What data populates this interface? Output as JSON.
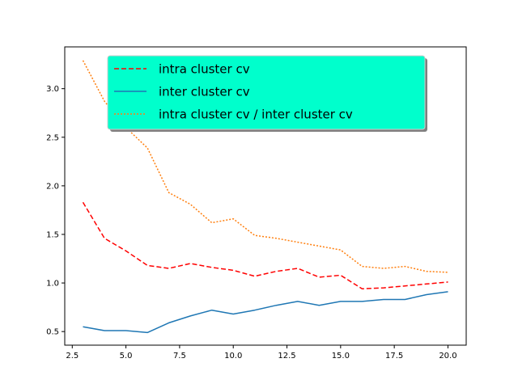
{
  "chart_data": {
    "type": "line",
    "x": [
      3,
      4,
      5,
      6,
      7,
      8,
      9,
      10,
      11,
      12,
      13,
      14,
      15,
      16,
      17,
      18,
      19,
      20
    ],
    "series": [
      {
        "name": "intra cluster cv",
        "color": "#ff0000",
        "style": "dashed",
        "values": [
          1.83,
          1.46,
          1.33,
          1.18,
          1.15,
          1.2,
          1.16,
          1.13,
          1.07,
          1.12,
          1.15,
          1.06,
          1.08,
          0.94,
          0.95,
          0.97,
          0.99,
          1.01
        ]
      },
      {
        "name": "inter cluster cv",
        "color": "#1f77b4",
        "style": "solid",
        "values": [
          0.55,
          0.51,
          0.51,
          0.49,
          0.59,
          0.66,
          0.72,
          0.68,
          0.72,
          0.77,
          0.81,
          0.77,
          0.81,
          0.81,
          0.83,
          0.83,
          0.88,
          0.91
        ]
      },
      {
        "name": "intra cluster cv / inter cluster cv",
        "color": "#ff7f0e",
        "style": "dotted",
        "values": [
          3.29,
          2.87,
          2.6,
          2.39,
          1.93,
          1.81,
          1.62,
          1.66,
          1.49,
          1.46,
          1.42,
          1.38,
          1.34,
          1.17,
          1.15,
          1.17,
          1.12,
          1.11
        ]
      }
    ],
    "xticks": [
      "2.5",
      "5.0",
      "7.5",
      "10.0",
      "12.5",
      "15.0",
      "17.5",
      "20.0"
    ],
    "yticks": [
      "0.5",
      "1.0",
      "1.5",
      "2.0",
      "2.5",
      "3.0"
    ],
    "xlim": [
      2.15,
      20.85
    ],
    "ylim": [
      0.36,
      3.43
    ],
    "title": "",
    "xlabel": "",
    "ylabel": "",
    "grid": false,
    "legend": {
      "placement": "upper-left",
      "background": "#00ffcc"
    }
  }
}
